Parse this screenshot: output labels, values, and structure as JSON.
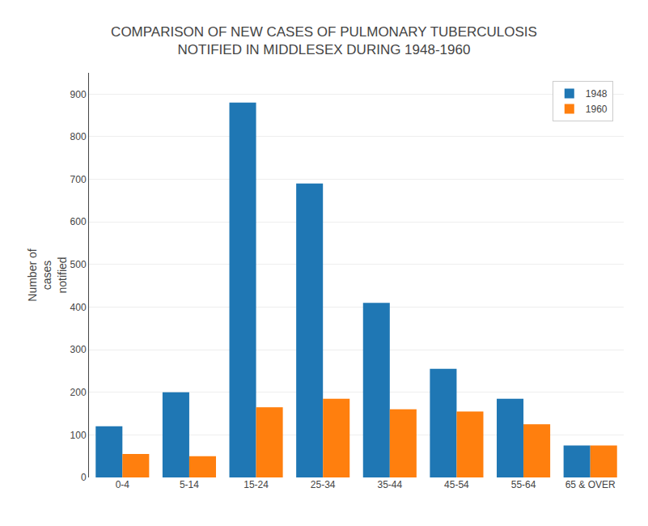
{
  "chart_data": {
    "type": "bar",
    "title": "COMPARISON OF NEW CASES OF PULMONARY TUBERCULOSIS\nNOTIFIED IN MIDDLESEX DURING 1948-1960",
    "ylabel": "Number of\ncases\nnotified",
    "categories": [
      "0-4",
      "5-14",
      "15-24",
      "25-34",
      "35-44",
      "45-54",
      "55-64",
      "65 & OVER"
    ],
    "series": [
      {
        "name": "1948",
        "values": [
          120,
          200,
          880,
          690,
          410,
          255,
          185,
          75
        ]
      },
      {
        "name": "1960",
        "values": [
          55,
          50,
          165,
          185,
          160,
          155,
          125,
          75
        ]
      }
    ],
    "ylim": [
      0,
      950
    ],
    "yticks": [
      0,
      100,
      200,
      300,
      400,
      500,
      600,
      700,
      800,
      900
    ],
    "grid": true,
    "legend": "upper right"
  }
}
